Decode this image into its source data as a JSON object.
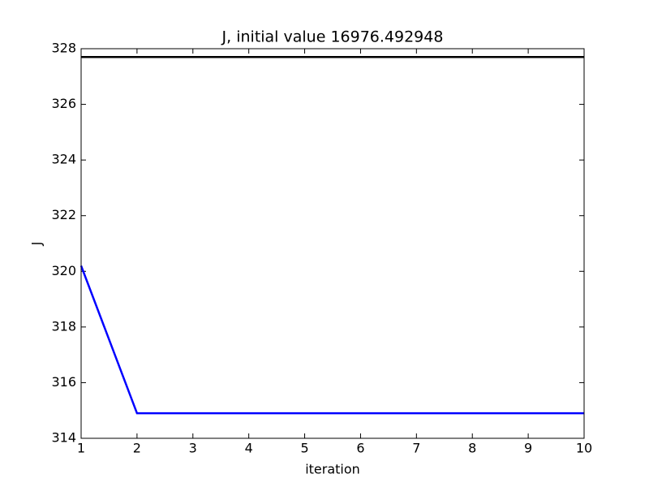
{
  "chart_data": {
    "type": "line",
    "title": "J, initial value 16976.492948",
    "x_label": "iteration",
    "y_label": "J",
    "x": [
      1,
      2,
      3,
      4,
      5,
      6,
      7,
      8,
      9,
      10
    ],
    "series": [
      {
        "color": "#0000ff",
        "values": [
          320.2,
          314.9,
          314.9,
          314.9,
          314.9,
          314.9,
          314.9,
          314.9,
          314.9,
          314.9
        ]
      },
      {
        "color": "#000000",
        "values": [
          327.7,
          327.7,
          327.7,
          327.7,
          327.7,
          327.7,
          327.7,
          327.7,
          327.7,
          327.7
        ]
      }
    ],
    "xlim": [
      1,
      10
    ],
    "xticks": [
      1,
      2,
      3,
      4,
      5,
      6,
      7,
      8,
      9,
      10
    ],
    "ylim": [
      314,
      328
    ],
    "yticks": [
      314,
      316,
      318,
      320,
      322,
      324,
      326,
      328
    ],
    "grid": false
  }
}
